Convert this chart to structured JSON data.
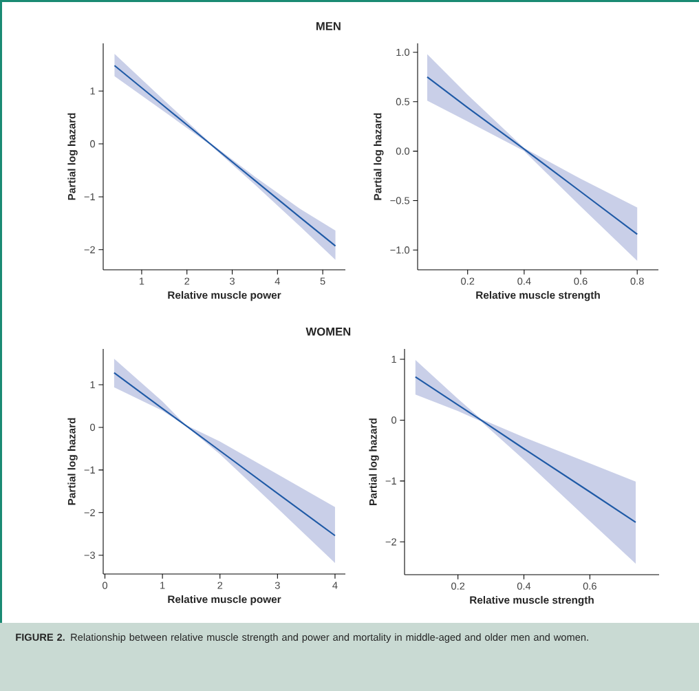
{
  "chart_data": [
    {
      "type": "line",
      "title": "MEN",
      "xlabel": "Relative muscle power",
      "ylabel": "Partial log hazard",
      "xlim": [
        0.15,
        5.5
      ],
      "ylim": [
        -2.38,
        1.9
      ],
      "xticks": [
        1,
        2,
        3,
        4,
        5
      ],
      "yticks": [
        {
          "value": -2,
          "label": "−2"
        },
        {
          "value": -1,
          "label": "−1"
        },
        0,
        1
      ],
      "series": [
        {
          "color": "#1f5aa6",
          "x": [
            0.4,
            1.5,
            2.5,
            3.5,
            4.5,
            5.28
          ],
          "values": [
            1.48,
            0.71,
            0.01,
            -0.69,
            -1.39,
            -1.93
          ],
          "lower": [
            1.28,
            0.61,
            -0.01,
            -0.77,
            -1.56,
            -2.19
          ],
          "upper": [
            1.7,
            0.82,
            0.03,
            -0.62,
            -1.23,
            -1.64
          ]
        }
      ]
    },
    {
      "type": "line",
      "xlabel": "Relative muscle strength",
      "ylabel": "Partial log hazard",
      "xlim": [
        0.023,
        0.875
      ],
      "ylim": [
        -1.2,
        1.09
      ],
      "xticks": [
        {
          "value": 0.2,
          "label": "0.2"
        },
        {
          "value": 0.4,
          "label": "0.4"
        },
        {
          "value": 0.6,
          "label": "0.6"
        },
        {
          "value": 0.8,
          "label": "0.8"
        }
      ],
      "yticks": [
        {
          "value": -1,
          "label": "−1.0"
        },
        {
          "value": -0.5,
          "label": "−0.5"
        },
        {
          "value": 0,
          "label": "0.0"
        },
        {
          "value": 0.5,
          "label": "0.5"
        },
        {
          "value": 1,
          "label": "1.0"
        }
      ],
      "series": [
        {
          "color": "#1f5aa6",
          "x": [
            0.057,
            0.2,
            0.4,
            0.6,
            0.8
          ],
          "values": [
            0.75,
            0.44,
            0.02,
            -0.41,
            -0.84
          ],
          "lower": [
            0.51,
            0.3,
            0.0,
            -0.56,
            -1.11
          ],
          "upper": [
            0.98,
            0.57,
            0.03,
            -0.28,
            -0.57
          ]
        }
      ]
    },
    {
      "type": "line",
      "title": "WOMEN",
      "xlabel": "Relative muscle power",
      "ylabel": "Partial log hazard",
      "xlim": [
        -0.03,
        4.18
      ],
      "ylim": [
        -3.44,
        1.84
      ],
      "xticks": [
        0,
        1,
        2,
        3,
        4
      ],
      "yticks": [
        {
          "value": -3,
          "label": "−3"
        },
        {
          "value": -2,
          "label": "−2"
        },
        {
          "value": -1,
          "label": "−1"
        },
        0,
        1
      ],
      "series": [
        {
          "color": "#1f5aa6",
          "x": [
            0.16,
            1,
            1.4,
            2,
            3,
            4
          ],
          "values": [
            1.28,
            0.44,
            0.05,
            -0.55,
            -1.55,
            -2.54
          ],
          "lower": [
            0.94,
            0.39,
            0.04,
            -0.63,
            -1.9,
            -3.18
          ],
          "upper": [
            1.61,
            0.61,
            0.06,
            -0.33,
            -1.1,
            -1.87
          ]
        }
      ]
    },
    {
      "type": "line",
      "xlabel": "Relative muscle strength",
      "ylabel": "Partial log hazard",
      "xlim": [
        0.038,
        0.81
      ],
      "ylim": [
        -2.54,
        1.17
      ],
      "xticks": [
        {
          "value": 0.2,
          "label": "0.2"
        },
        {
          "value": 0.4,
          "label": "0.4"
        },
        {
          "value": 0.6,
          "label": "0.6"
        }
      ],
      "yticks": [
        {
          "value": -2,
          "label": "−2"
        },
        {
          "value": -1,
          "label": "−1"
        },
        0,
        1
      ],
      "series": [
        {
          "color": "#1f5aa6",
          "x": [
            0.071,
            0.2,
            0.27,
            0.4,
            0.6,
            0.739
          ],
          "values": [
            0.71,
            0.25,
            0.0,
            -0.47,
            -1.18,
            -1.68
          ],
          "lower": [
            0.42,
            0.15,
            -0.02,
            -0.65,
            -1.66,
            -2.36
          ],
          "upper": [
            0.99,
            0.35,
            0.02,
            -0.28,
            -0.71,
            -1.01
          ]
        }
      ],
      "annotations": [
        "**FIGURE 2.** Relationship between relative muscle strength and power and mortality in middle-aged and older men and women."
      ]
    }
  ]
}
